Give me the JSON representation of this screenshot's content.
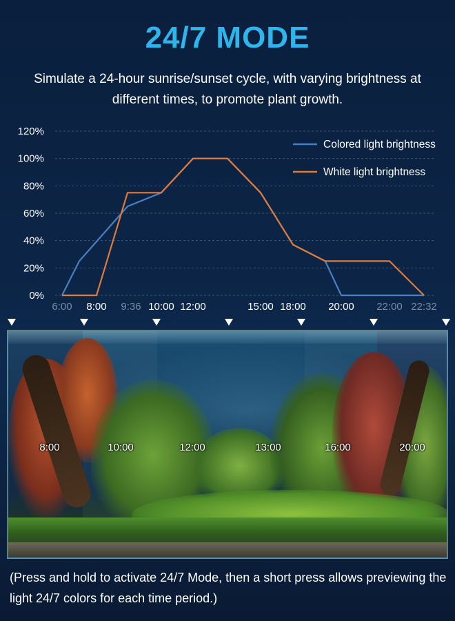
{
  "header": {
    "title": "24/7 MODE",
    "subtitle": "Simulate a 24-hour sunrise/sunset cycle, with varying brightness at different times, to promote plant growth."
  },
  "chart_data": {
    "type": "line",
    "x": [
      "6:00",
      "8:00",
      "9:36",
      "10:00",
      "12:00",
      "13:00",
      "15:00",
      "18:00",
      "20:00",
      "22:00",
      "22:32"
    ],
    "x_tick_labels": [
      "6:00",
      "8:00",
      "9:36",
      "10:00",
      "12:00",
      "15:00",
      "18:00",
      "20:00",
      "22:00",
      "22:32"
    ],
    "y_tick_labels": [
      "0%",
      "20%",
      "40%",
      "60%",
      "80%",
      "100%",
      "120%"
    ],
    "ylim": [
      0,
      120
    ],
    "grid": true,
    "legend_position": "top-right",
    "series": [
      {
        "name": "Colored light brightness",
        "color": "#4a7fc1",
        "points": [
          [
            "6:00",
            0
          ],
          [
            "7:00",
            25
          ],
          [
            "9:00",
            65
          ],
          [
            "10:00",
            75
          ],
          [
            "12:00",
            100
          ],
          [
            "13:00",
            100
          ],
          [
            "15:00",
            75
          ],
          [
            "18:00",
            37
          ],
          [
            "19:20",
            25
          ],
          [
            "20:00",
            0
          ],
          [
            "22:32",
            0
          ]
        ]
      },
      {
        "name": "White light brightness",
        "color": "#e07b39",
        "points": [
          [
            "6:00",
            0
          ],
          [
            "8:00",
            0
          ],
          [
            "9:00",
            75
          ],
          [
            "10:00",
            75
          ],
          [
            "12:00",
            100
          ],
          [
            "13:00",
            100
          ],
          [
            "15:00",
            75
          ],
          [
            "18:00",
            37
          ],
          [
            "19:20",
            25
          ],
          [
            "22:00",
            25
          ],
          [
            "22:32",
            0
          ]
        ]
      }
    ]
  },
  "tank": {
    "time_labels": [
      "8:00",
      "10:00",
      "12:00",
      "13:00",
      "16:00",
      "20:00"
    ]
  },
  "footer": {
    "note": "(Press and hold to activate 24/7 Mode, then a short press allows previewing the light 24/7 colors for each time period.)"
  }
}
